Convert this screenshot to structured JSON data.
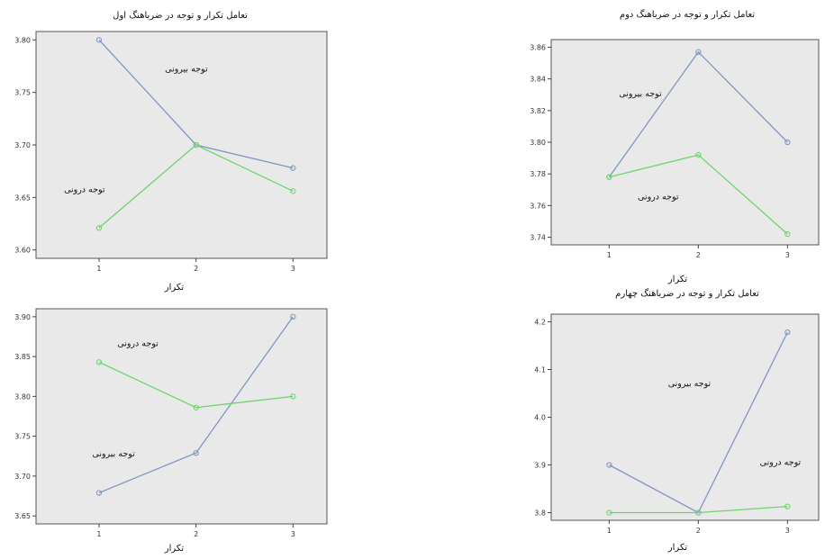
{
  "colors": {
    "outer": "#7f96c4",
    "inner": "#6cd46c"
  },
  "chart_data": [
    {
      "type": "line",
      "title": "تعامل تکرار و توجه در ضرباهنگ اول",
      "xlabel": "تکرار",
      "x": [
        1,
        2,
        3
      ],
      "xticks": [
        "1",
        "2",
        "3"
      ],
      "ylim": [
        3.6,
        3.8
      ],
      "yticks": [
        "3.60",
        "3.65",
        "3.70",
        "3.75",
        "3.80"
      ],
      "series": [
        {
          "key": "outer",
          "values": [
            3.8,
            3.7,
            3.678
          ]
        },
        {
          "key": "inner",
          "values": [
            3.621,
            3.7,
            3.656
          ]
        }
      ],
      "annotations": [
        {
          "text": "توجه بیرونی",
          "x": 1.9,
          "y": 3.77
        },
        {
          "text": "توجه درونی",
          "x": 0.85,
          "y": 3.655
        }
      ]
    },
    {
      "type": "line",
      "title": "تعامل تکرار و توجه در ضرباهنگ دوم",
      "xlabel": "تکرار",
      "x": [
        1,
        2,
        3
      ],
      "xticks": [
        "1",
        "2",
        "3"
      ],
      "ylim": [
        3.74,
        3.86
      ],
      "yticks": [
        "3.74",
        "3.76",
        "3.78",
        "3.80",
        "3.82",
        "3.84",
        "3.86"
      ],
      "series": [
        {
          "key": "outer",
          "values": [
            3.778,
            3.857,
            3.8
          ]
        },
        {
          "key": "inner",
          "values": [
            3.778,
            3.792,
            3.742
          ]
        }
      ],
      "annotations": [
        {
          "text": "توجه بیرونی",
          "x": 1.35,
          "y": 3.829
        },
        {
          "text": "توجه درونی",
          "x": 1.55,
          "y": 3.764
        }
      ]
    },
    {
      "type": "line",
      "title": "",
      "xlabel": "تکرار",
      "x": [
        1,
        2,
        3
      ],
      "xticks": [
        "1",
        "2",
        "3"
      ],
      "ylim": [
        3.65,
        3.9
      ],
      "yticks": [
        "3.65",
        "3.70",
        "3.75",
        "3.80",
        "3.85",
        "3.90"
      ],
      "series": [
        {
          "key": "outer",
          "values": [
            3.679,
            3.729,
            3.9
          ]
        },
        {
          "key": "inner",
          "values": [
            3.843,
            3.786,
            3.8
          ]
        }
      ],
      "annotations": [
        {
          "text": "توجه درونی",
          "x": 1.4,
          "y": 3.863
        },
        {
          "text": "توجه بیرونی",
          "x": 1.15,
          "y": 3.725
        }
      ]
    },
    {
      "type": "line",
      "title": "تعامل تکرار و توجه در ضرباهنگ چهارم",
      "xlabel": "تکرار",
      "x": [
        1,
        2,
        3
      ],
      "xticks": [
        "1",
        "2",
        "3"
      ],
      "ylim": [
        3.8,
        4.2
      ],
      "yticks": [
        "3.8",
        "3.9",
        "4.0",
        "4.1",
        "4.2"
      ],
      "series": [
        {
          "key": "outer",
          "values": [
            3.9,
            3.8,
            4.178
          ]
        },
        {
          "key": "inner",
          "values": [
            3.8,
            3.8,
            3.813
          ]
        }
      ],
      "annotations": [
        {
          "text": "توجه بیرونی",
          "x": 1.9,
          "y": 4.065
        },
        {
          "text": "توجه درونی",
          "x": 2.92,
          "y": 3.9
        }
      ]
    }
  ]
}
